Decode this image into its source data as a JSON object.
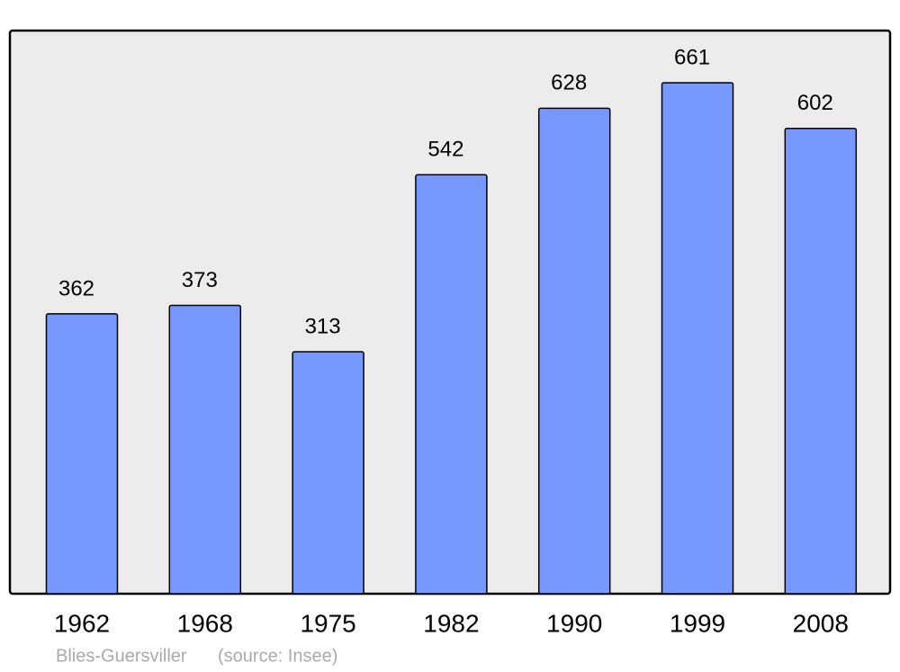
{
  "chart_data": {
    "type": "bar",
    "title": "Blies-Guersviller",
    "source": "(source: Insee)",
    "categories": [
      "1962",
      "1968",
      "1975",
      "1982",
      "1990",
      "1999",
      "2008"
    ],
    "values": [
      362,
      373,
      313,
      542,
      628,
      661,
      602
    ],
    "color": "#7799ff"
  }
}
